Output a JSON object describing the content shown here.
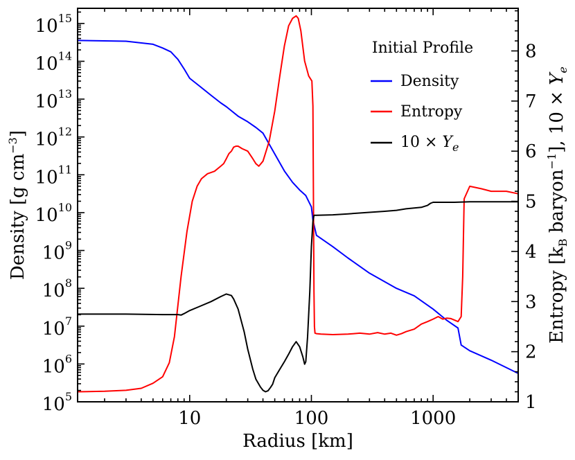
{
  "chart_data": {
    "type": "line",
    "title": "",
    "xlabel": "Radius [km]",
    "ylabel_left": "Density [g cm^-3]",
    "ylabel_right": "Entropy [k_B baryon^-1], 10 × Y_e",
    "xscale": "log",
    "xlim": [
      1.2,
      5000
    ],
    "left_axis": {
      "scale": "log",
      "ylim_exponents": [
        5,
        15.4
      ]
    },
    "right_axis": {
      "scale": "linear",
      "ylim": [
        1.0,
        8.85
      ]
    },
    "x_ticks": [
      {
        "value": 10,
        "label": "10"
      },
      {
        "value": 100,
        "label": "100"
      },
      {
        "value": 1000,
        "label": "1000"
      }
    ],
    "left_ticks": [
      {
        "exp": 5,
        "base": "10",
        "sup": "5"
      },
      {
        "exp": 6,
        "base": "10",
        "sup": "6"
      },
      {
        "exp": 7,
        "base": "10",
        "sup": "7"
      },
      {
        "exp": 8,
        "base": "10",
        "sup": "8"
      },
      {
        "exp": 9,
        "base": "10",
        "sup": "9"
      },
      {
        "exp": 10,
        "base": "10",
        "sup": "10"
      },
      {
        "exp": 11,
        "base": "10",
        "sup": "11"
      },
      {
        "exp": 12,
        "base": "10",
        "sup": "12"
      },
      {
        "exp": 13,
        "base": "10",
        "sup": "13"
      },
      {
        "exp": 14,
        "base": "10",
        "sup": "14"
      },
      {
        "exp": 15,
        "base": "10",
        "sup": "15"
      }
    ],
    "right_ticks": [
      {
        "value": 1,
        "label": "1"
      },
      {
        "value": 2,
        "label": "2"
      },
      {
        "value": 3,
        "label": "3"
      },
      {
        "value": 4,
        "label": "4"
      },
      {
        "value": 5,
        "label": "5"
      },
      {
        "value": 6,
        "label": "6"
      },
      {
        "value": 7,
        "label": "7"
      },
      {
        "value": 8,
        "label": "8"
      }
    ],
    "legend": {
      "title": "Initial Profile",
      "position": "top-right",
      "entries": [
        "Density",
        "Entropy",
        "10 × Y_e"
      ]
    },
    "series": [
      {
        "name": "Density",
        "axis": "left",
        "color": "#0000ff",
        "x": [
          1.2,
          2,
          3,
          5,
          6,
          7,
          8,
          9,
          10,
          12,
          15,
          18,
          20,
          25,
          30,
          35,
          40,
          50,
          60,
          70,
          80,
          90,
          100,
          103,
          110,
          150,
          200,
          300,
          500,
          700,
          1000,
          1300,
          1600,
          1700,
          2000,
          3000,
          5000
        ],
        "y_log10": [
          14.55,
          14.54,
          14.53,
          14.45,
          14.35,
          14.25,
          14.05,
          13.8,
          13.55,
          13.35,
          13.1,
          12.9,
          12.8,
          12.55,
          12.4,
          12.25,
          12.1,
          11.55,
          11.1,
          10.8,
          10.6,
          10.45,
          10.15,
          9.8,
          9.4,
          9.1,
          8.8,
          8.4,
          8.0,
          7.8,
          7.45,
          7.15,
          6.95,
          6.5,
          6.35,
          6.1,
          5.75
        ]
      },
      {
        "name": "Entropy",
        "axis": "right",
        "color": "#ff0000",
        "x": [
          1.2,
          2,
          3,
          4,
          5,
          6,
          6.8,
          7.5,
          8.5,
          9.5,
          10.5,
          11.5,
          12.5,
          14,
          16,
          18,
          19,
          20,
          21,
          22,
          23,
          24,
          25,
          27,
          30,
          33,
          35,
          37,
          40,
          45,
          50,
          55,
          60,
          65,
          70,
          75,
          78,
          82,
          88,
          95,
          101,
          103,
          105,
          106,
          107,
          110,
          120,
          150,
          200,
          250,
          300,
          350,
          400,
          450,
          500,
          550,
          600,
          700,
          800,
          900,
          1000,
          1100,
          1200,
          1300,
          1400,
          1500,
          1600,
          1700,
          1750,
          1800,
          2000,
          2500,
          3000,
          4000,
          5000
        ],
        "y": [
          1.2,
          1.21,
          1.23,
          1.27,
          1.37,
          1.5,
          1.78,
          2.3,
          3.5,
          4.4,
          5.0,
          5.3,
          5.45,
          5.55,
          5.6,
          5.7,
          5.75,
          5.85,
          5.95,
          6.0,
          6.08,
          6.1,
          6.1,
          6.05,
          6.0,
          5.85,
          5.75,
          5.7,
          5.8,
          6.2,
          6.8,
          7.5,
          8.1,
          8.5,
          8.65,
          8.7,
          8.65,
          8.4,
          7.8,
          7.5,
          7.4,
          6.9,
          3.2,
          2.5,
          2.37,
          2.36,
          2.35,
          2.34,
          2.35,
          2.37,
          2.35,
          2.38,
          2.35,
          2.37,
          2.33,
          2.36,
          2.4,
          2.45,
          2.55,
          2.6,
          2.65,
          2.7,
          2.65,
          2.67,
          2.66,
          2.63,
          2.6,
          2.7,
          3.5,
          5.05,
          5.3,
          5.25,
          5.2,
          5.2,
          5.15
        ]
      },
      {
        "name": "10 × Y_e",
        "axis": "right",
        "color": "#000000",
        "x": [
          1.2,
          3,
          6,
          8,
          8.5,
          9,
          10,
          12,
          15,
          18,
          20,
          22,
          23,
          25,
          28,
          30,
          33,
          35,
          38,
          40,
          42,
          44,
          46,
          48,
          50,
          55,
          60,
          65,
          70,
          75,
          80,
          85,
          88,
          90,
          93,
          97,
          100,
          103,
          105,
          110,
          150,
          200,
          300,
          400,
          500,
          600,
          800,
          900,
          950,
          1000,
          1500,
          2000,
          3000,
          4000,
          5000
        ],
        "y": [
          2.75,
          2.75,
          2.74,
          2.74,
          2.73,
          2.76,
          2.82,
          2.9,
          3.0,
          3.1,
          3.15,
          3.12,
          3.05,
          2.85,
          2.4,
          2.05,
          1.65,
          1.45,
          1.3,
          1.23,
          1.2,
          1.22,
          1.28,
          1.35,
          1.48,
          1.65,
          1.8,
          1.95,
          2.1,
          2.2,
          2.1,
          1.9,
          1.75,
          1.8,
          2.3,
          3.2,
          4.1,
          4.6,
          4.72,
          4.72,
          4.73,
          4.75,
          4.78,
          4.8,
          4.82,
          4.85,
          4.88,
          4.92,
          4.96,
          4.98,
          4.98,
          4.99,
          4.99,
          4.99,
          4.99
        ]
      }
    ]
  }
}
